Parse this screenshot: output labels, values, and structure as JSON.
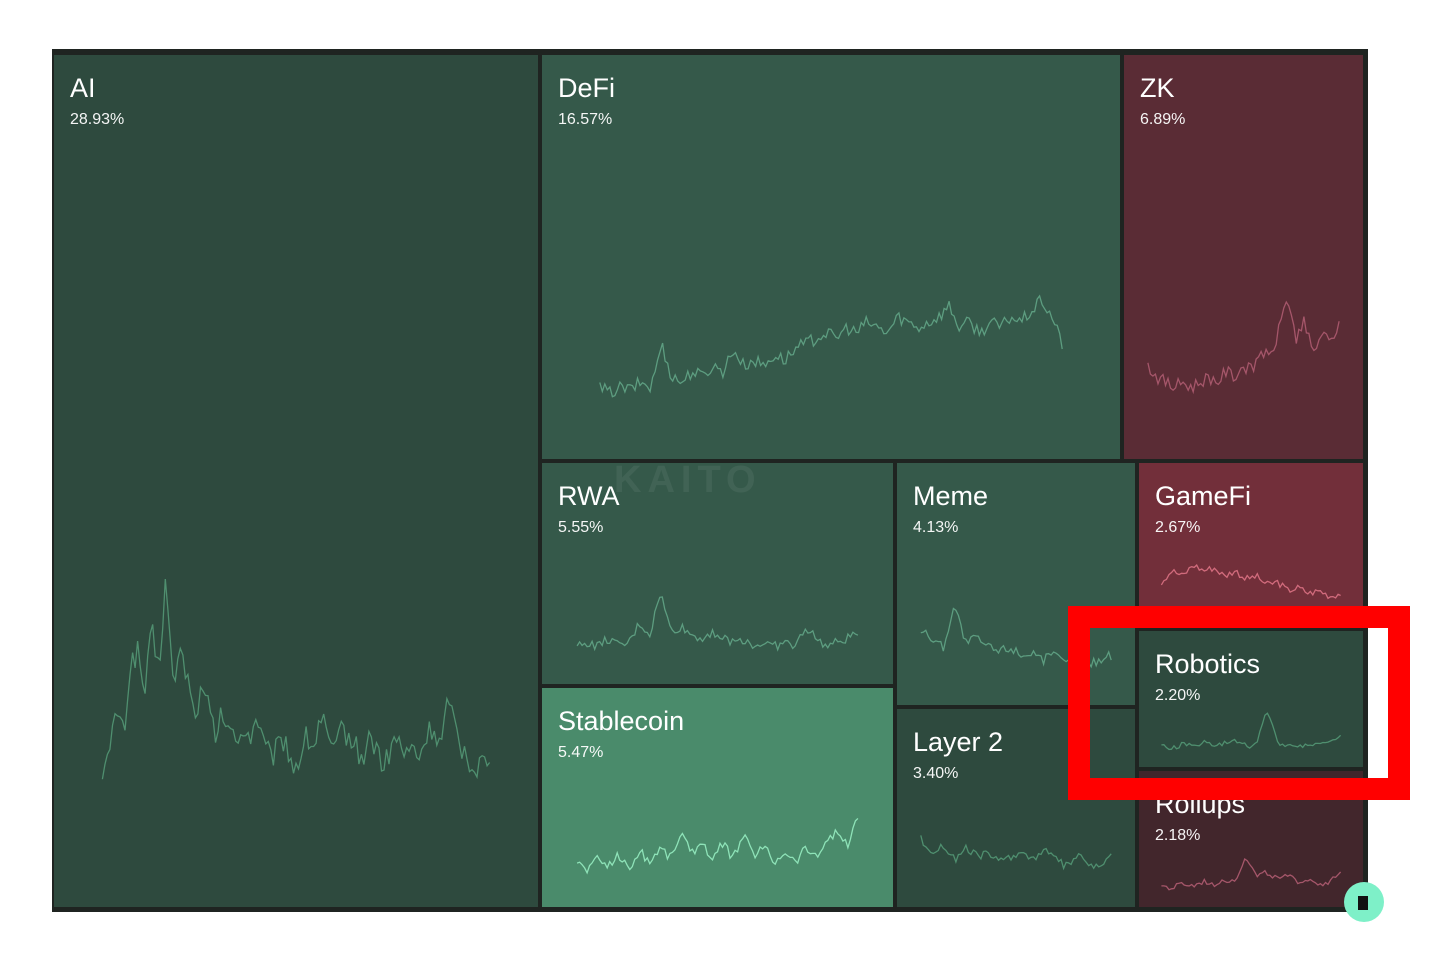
{
  "chart_data": {
    "type": "treemap",
    "watermark": "KAITO",
    "items": [
      {
        "name": "AI",
        "value": 28.93,
        "label": "28.93%",
        "color": "#2e4a3e",
        "line": "#4f8f6f",
        "spark": [
          0.05,
          0.1,
          0.35,
          0.2,
          0.55,
          0.6,
          0.4,
          0.7,
          0.5,
          0.95,
          0.45,
          0.6,
          0.5,
          0.3,
          0.4,
          0.35,
          0.2,
          0.3,
          0.25,
          0.15,
          0.25,
          0.2,
          0.3,
          0.15,
          0.1,
          0.15,
          0.2,
          0.05,
          0.1,
          0.2,
          0.15,
          0.3,
          0.2,
          0.1,
          0.25,
          0.2,
          0.15,
          0.1,
          0.2,
          0.15,
          0.05,
          0.15,
          0.2,
          0.1,
          0.15,
          0.1,
          0.2,
          0.25,
          0.15,
          0.35,
          0.25,
          0.15,
          0.1,
          0.05,
          0.1,
          0.05
        ]
      },
      {
        "name": "DeFi",
        "value": 16.57,
        "label": "16.57%",
        "color": "#35594a",
        "line": "#5d9d80",
        "spark": [
          0.1,
          0.05,
          0.1,
          0.08,
          0.15,
          0.1,
          0.5,
          0.2,
          0.15,
          0.25,
          0.2,
          0.3,
          0.25,
          0.45,
          0.3,
          0.35,
          0.3,
          0.4,
          0.35,
          0.45,
          0.5,
          0.55,
          0.6,
          0.55,
          0.65,
          0.6,
          0.7,
          0.65,
          0.6,
          0.75,
          0.7,
          0.65,
          0.7,
          0.75,
          0.85,
          0.65,
          0.7,
          0.6,
          0.7,
          0.65,
          0.75,
          0.7,
          0.8,
          0.9,
          0.75,
          0.5
        ]
      },
      {
        "name": "ZK",
        "value": 6.89,
        "label": "6.89%",
        "color": "#5a2c35",
        "line": "#a5566a",
        "spark": [
          0.3,
          0.2,
          0.15,
          0.1,
          0.15,
          0.1,
          0.15,
          0.2,
          0.15,
          0.25,
          0.2,
          0.3,
          0.25,
          0.45,
          0.35,
          0.6,
          0.95,
          0.55,
          0.7,
          0.4,
          0.6,
          0.5,
          0.7
        ]
      },
      {
        "name": "RWA",
        "value": 5.55,
        "label": "5.55%",
        "color": "#35594a",
        "line": "#5d9d80",
        "spark": [
          0.2,
          0.25,
          0.2,
          0.3,
          0.2,
          0.25,
          0.5,
          0.35,
          0.9,
          0.4,
          0.45,
          0.35,
          0.3,
          0.4,
          0.3,
          0.25,
          0.3,
          0.2,
          0.25,
          0.2,
          0.25,
          0.2,
          0.45,
          0.3,
          0.2,
          0.25,
          0.3,
          0.4
        ]
      },
      {
        "name": "Stablecoin",
        "value": 5.47,
        "label": "5.47%",
        "color": "#4a8b6b",
        "line": "#8ee3b8",
        "spark": [
          0.3,
          0.2,
          0.35,
          0.25,
          0.4,
          0.2,
          0.45,
          0.3,
          0.5,
          0.35,
          0.7,
          0.4,
          0.6,
          0.3,
          0.55,
          0.35,
          0.65,
          0.4,
          0.5,
          0.3,
          0.45,
          0.3,
          0.5,
          0.35,
          0.6,
          0.7,
          0.5,
          0.9
        ]
      },
      {
        "name": "Meme",
        "value": 4.13,
        "label": "4.13%",
        "color": "#35594a",
        "line": "#5d9d80",
        "spark": [
          0.6,
          0.5,
          0.4,
          0.9,
          0.45,
          0.5,
          0.4,
          0.35,
          0.4,
          0.3,
          0.35,
          0.25,
          0.3,
          0.2,
          0.25,
          0.2,
          0.25,
          0.3
        ]
      },
      {
        "name": "GameFi",
        "value": 2.67,
        "label": "2.67%",
        "color": "#722f3a",
        "line": "#d16b7c",
        "spark": [
          0.5,
          0.7,
          0.6,
          0.8,
          0.7,
          0.75,
          0.6,
          0.7,
          0.55,
          0.6,
          0.45,
          0.5,
          0.35,
          0.4,
          0.3,
          0.35,
          0.25,
          0.3
        ]
      },
      {
        "name": "Layer 2",
        "value": 3.4,
        "label": "3.40%",
        "color": "#2e4a3e",
        "line": "#4f8f6f",
        "spark": [
          0.7,
          0.5,
          0.6,
          0.4,
          0.55,
          0.45,
          0.5,
          0.35,
          0.45,
          0.5,
          0.4,
          0.55,
          0.4,
          0.3,
          0.45,
          0.35,
          0.25,
          0.5
        ]
      },
      {
        "name": "Robotics",
        "value": 2.2,
        "label": "2.20%",
        "color": "#2e4a3e",
        "line": "#4f8f6f",
        "spark": [
          0.15,
          0.1,
          0.2,
          0.15,
          0.25,
          0.15,
          0.2,
          0.3,
          0.15,
          0.2,
          0.9,
          0.25,
          0.15,
          0.2,
          0.15,
          0.25,
          0.2,
          0.4
        ]
      },
      {
        "name": "Rollups",
        "value": 2.18,
        "label": "2.18%",
        "color": "#42262c",
        "line": "#a5566a",
        "spark": [
          0.15,
          0.1,
          0.2,
          0.15,
          0.25,
          0.2,
          0.3,
          0.25,
          0.8,
          0.35,
          0.45,
          0.3,
          0.35,
          0.25,
          0.3,
          0.2,
          0.25,
          0.4
        ]
      }
    ]
  }
}
